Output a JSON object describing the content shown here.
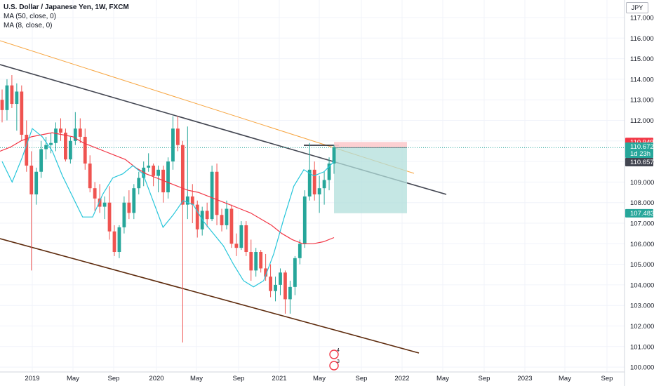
{
  "header": {
    "title": "U.S. Dollar / Japanese Yen, 1W, FXCM",
    "ma1": "MA (50, close, 0)",
    "ma2": "MA (8, close, 0)",
    "currency": "JPY"
  },
  "colors": {
    "up": "#26a69a",
    "down": "#ef5350",
    "ma50": "#f23645",
    "ma8": "#26c6da",
    "channel_upper": "#434651",
    "channel_lower": "#5d2a0c",
    "orange_line": "#f7a540",
    "target_zone": "#b2dfdb",
    "stop_zone": "#fccbcd",
    "dotted_price": "#26a69a"
  },
  "chart_data": {
    "type": "candlestick",
    "symbol": "USDJPY",
    "timeframe": "1W",
    "ylim": [
      99.8,
      117.5
    ],
    "y_ticks": [
      "117.000",
      "116.000",
      "115.000",
      "114.000",
      "113.000",
      "112.000",
      "111.000",
      "110.000",
      "109.000",
      "108.000",
      "107.000",
      "106.000",
      "105.000",
      "104.000",
      "103.000",
      "102.000",
      "101.000",
      "100.000"
    ],
    "x_ticks": [
      "2019",
      "May",
      "Sep",
      "2020",
      "May",
      "Sep",
      "2021",
      "May",
      "Sep",
      "2022",
      "May",
      "Sep",
      "2023",
      "May",
      "Sep"
    ],
    "price_labels": [
      {
        "label": "110.949",
        "value": 110.949,
        "color": "#f23645"
      },
      {
        "label": "110.672",
        "sub": "1d 23h",
        "value": 110.672,
        "color": "#26a69a"
      },
      {
        "label": "110.657",
        "value": 110.657,
        "color": "#434651"
      },
      {
        "label": "107.483",
        "value": 107.483,
        "color": "#26a69a"
      }
    ],
    "position": {
      "entry": 110.672,
      "stop": 110.949,
      "target": 107.483
    },
    "series": [
      {
        "name": "MA (50, close, 0)",
        "values": [
          110.5,
          110.7,
          111.0,
          111.2,
          111.3,
          111.4,
          111.3,
          111.2,
          110.9,
          110.7,
          110.5,
          110.3,
          110.1,
          109.7,
          109.4,
          109.2,
          109.0,
          108.8,
          108.6,
          108.5,
          108.3,
          108.1,
          107.9,
          107.7,
          107.5,
          107.2,
          106.9,
          106.5,
          106.2,
          106.0,
          106.0,
          106.1,
          106.3
        ]
      },
      {
        "name": "MA (8, close, 0)",
        "values": [
          110.0,
          109.0,
          110.2,
          111.6,
          111.2,
          110.5,
          109.3,
          108.3,
          107.3,
          107.3,
          108.4,
          109.2,
          109.4,
          109.8,
          109.4,
          108.1,
          106.8,
          107.4,
          108.1,
          107.9,
          107.1,
          106.5,
          105.9,
          105.0,
          104.2,
          103.9,
          104.2,
          105.5,
          107.2,
          108.8,
          109.6,
          109.3,
          109.5,
          110.0
        ]
      }
    ],
    "candles": [
      [
        113.0,
        113.5,
        111.9,
        112.5
      ],
      [
        112.5,
        114.0,
        112.0,
        113.7
      ],
      [
        113.7,
        114.2,
        112.6,
        112.8
      ],
      [
        112.8,
        113.8,
        111.5,
        113.4
      ],
      [
        113.4,
        113.7,
        111.0,
        111.3
      ],
      [
        111.3,
        112.0,
        109.5,
        109.8
      ],
      [
        109.8,
        110.5,
        104.7,
        108.4
      ],
      [
        108.4,
        109.7,
        107.9,
        109.5
      ],
      [
        109.5,
        111.0,
        109.2,
        110.6
      ],
      [
        110.6,
        111.2,
        110.1,
        110.8
      ],
      [
        110.8,
        111.4,
        110.4,
        110.9
      ],
      [
        110.9,
        111.9,
        110.5,
        111.6
      ],
      [
        111.6,
        112.1,
        111.0,
        111.4
      ],
      [
        111.4,
        111.6,
        110.0,
        110.1
      ],
      [
        110.1,
        111.2,
        109.9,
        111.0
      ],
      [
        111.0,
        112.4,
        110.8,
        111.6
      ],
      [
        111.6,
        112.1,
        110.9,
        111.2
      ],
      [
        111.2,
        111.6,
        109.6,
        109.9
      ],
      [
        109.9,
        110.3,
        108.5,
        108.7
      ],
      [
        108.7,
        109.0,
        107.6,
        108.2
      ],
      [
        108.2,
        108.9,
        107.5,
        107.8
      ],
      [
        107.8,
        108.3,
        107.2,
        108.0
      ],
      [
        108.0,
        108.8,
        106.2,
        106.6
      ],
      [
        106.6,
        106.9,
        105.4,
        105.6
      ],
      [
        105.6,
        106.9,
        105.3,
        106.8
      ],
      [
        106.8,
        108.3,
        106.5,
        108.0
      ],
      [
        108.0,
        108.6,
        107.2,
        107.5
      ],
      [
        107.5,
        108.9,
        107.2,
        108.7
      ],
      [
        108.7,
        109.5,
        108.4,
        109.2
      ],
      [
        109.2,
        110.0,
        108.8,
        109.7
      ],
      [
        109.7,
        110.4,
        109.5,
        109.8
      ],
      [
        109.8,
        109.9,
        108.8,
        109.3
      ],
      [
        109.3,
        109.8,
        108.5,
        109.6
      ],
      [
        109.6,
        109.8,
        108.0,
        108.5
      ],
      [
        108.5,
        110.2,
        108.2,
        110.0
      ],
      [
        110.0,
        112.2,
        109.6,
        111.6
      ],
      [
        111.6,
        112.2,
        110.5,
        110.8
      ],
      [
        110.8,
        111.0,
        101.2,
        107.9
      ],
      [
        107.9,
        111.7,
        107.2,
        108.3
      ],
      [
        108.3,
        108.9,
        107.0,
        107.9
      ],
      [
        107.9,
        108.1,
        106.3,
        106.7
      ],
      [
        106.7,
        107.8,
        106.4,
        107.6
      ],
      [
        107.6,
        108.0,
        106.8,
        107.2
      ],
      [
        107.2,
        109.8,
        107.1,
        109.5
      ],
      [
        109.5,
        109.9,
        106.9,
        107.4
      ],
      [
        107.4,
        107.7,
        106.6,
        106.9
      ],
      [
        106.9,
        108.1,
        106.7,
        107.7
      ],
      [
        107.7,
        107.9,
        105.8,
        106.0
      ],
      [
        106.0,
        106.5,
        105.4,
        105.8
      ],
      [
        105.8,
        107.1,
        105.7,
        106.9
      ],
      [
        106.9,
        107.1,
        105.4,
        105.6
      ],
      [
        105.6,
        106.2,
        104.2,
        104.7
      ],
      [
        104.7,
        105.8,
        104.4,
        105.6
      ],
      [
        105.6,
        105.7,
        104.6,
        104.8
      ],
      [
        104.8,
        105.5,
        104.2,
        104.4
      ],
      [
        104.4,
        105.0,
        103.4,
        103.7
      ],
      [
        103.7,
        104.4,
        103.2,
        104.0
      ],
      [
        104.0,
        104.8,
        103.5,
        104.6
      ],
      [
        104.6,
        104.7,
        102.6,
        103.3
      ],
      [
        103.3,
        104.2,
        102.6,
        103.9
      ],
      [
        103.9,
        105.4,
        103.5,
        105.3
      ],
      [
        105.3,
        106.2,
        105.0,
        106.0
      ],
      [
        106.0,
        108.6,
        105.8,
        108.3
      ],
      [
        108.3,
        110.9,
        108.1,
        109.6
      ],
      [
        109.6,
        110.0,
        108.1,
        108.4
      ],
      [
        108.4,
        109.3,
        107.5,
        108.7
      ],
      [
        108.7,
        109.5,
        107.9,
        109.1
      ],
      [
        109.1,
        110.2,
        108.6,
        109.9
      ],
      [
        109.9,
        110.8,
        109.4,
        110.7
      ]
    ]
  }
}
